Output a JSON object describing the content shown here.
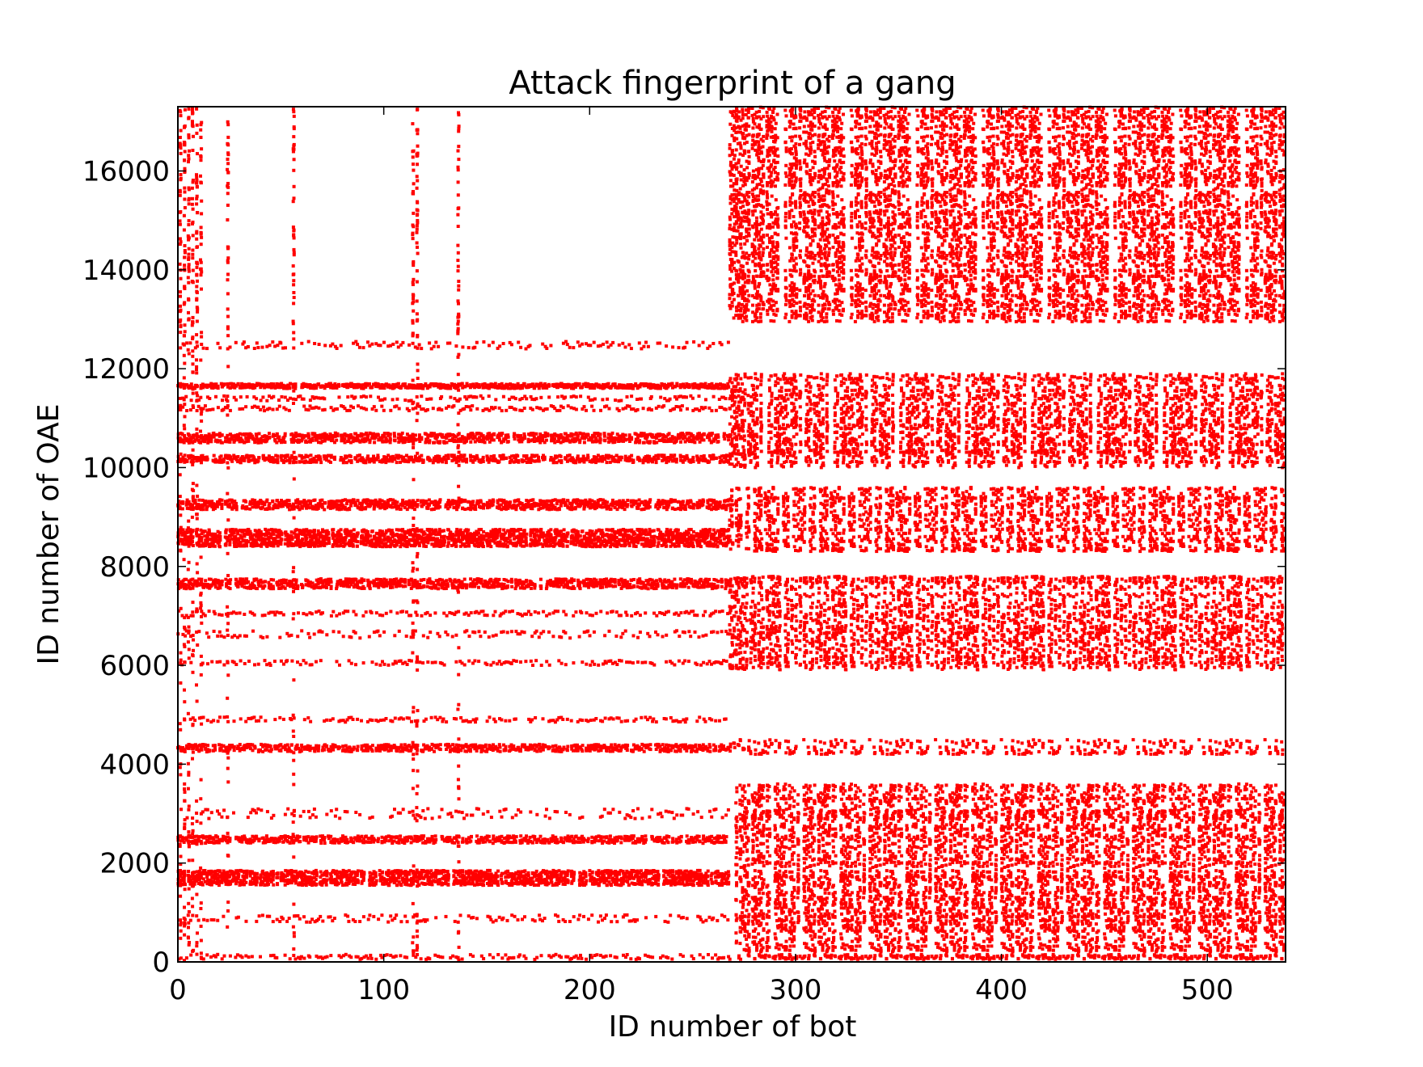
{
  "chart_data": {
    "type": "scatter",
    "title": "Attack fingerprint of a gang",
    "xlabel": "ID number of bot",
    "ylabel": "ID number of OAE",
    "xlim": [
      0,
      538
    ],
    "ylim": [
      0,
      17300
    ],
    "xticks": [
      0,
      100,
      200,
      300,
      400,
      500
    ],
    "yticks": [
      0,
      2000,
      4000,
      6000,
      8000,
      10000,
      12000,
      14000,
      16000
    ],
    "grid": false,
    "marker_color": "#ff0000",
    "description_of_structure": null,
    "regions": [
      {
        "x": [
          0,
          268
        ],
        "density": "low",
        "dense_y_bands": [
          [
            8400,
            8750
          ],
          [
            9150,
            9350
          ],
          [
            10100,
            10250
          ],
          [
            10500,
            10700
          ],
          [
            11600,
            11700
          ],
          [
            1550,
            1850
          ],
          [
            2400,
            2550
          ],
          [
            4250,
            4400
          ],
          [
            7550,
            7750
          ]
        ],
        "sparse_y_bands": [
          [
            12400,
            12550
          ],
          [
            11350,
            11450
          ],
          [
            11150,
            11250
          ],
          [
            7000,
            7100
          ],
          [
            6550,
            6700
          ],
          [
            6000,
            6100
          ],
          [
            4850,
            4950
          ],
          [
            2900,
            3100
          ],
          [
            800,
            950
          ],
          [
            50,
            150
          ]
        ]
      },
      {
        "x": [
          268,
          538
        ],
        "density": "high",
        "dense_y_bands": [
          [
            12950,
            17300
          ],
          [
            10000,
            11900
          ],
          [
            8300,
            9600
          ],
          [
            5900,
            7800
          ],
          [
            4200,
            4500
          ],
          [
            200,
            3600
          ],
          [
            50,
            150
          ]
        ]
      }
    ],
    "columns_left": [
      1,
      3,
      5,
      7,
      9,
      11,
      24,
      56,
      114,
      116,
      136
    ]
  }
}
